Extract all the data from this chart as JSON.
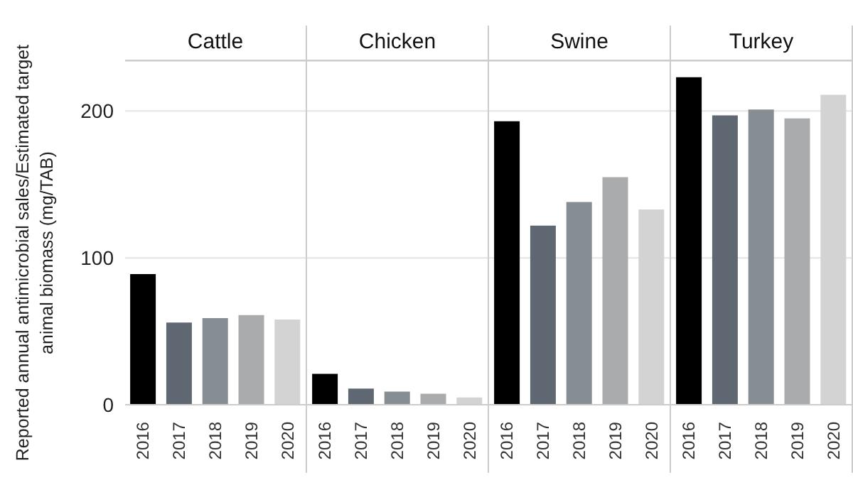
{
  "chart_data": [
    {
      "type": "bar",
      "title": "Cattle",
      "ylabel": "Reported annual antimicrobial sales/Estimated target animal biomass (mg/TAB)",
      "categories": [
        "2016",
        "2017",
        "2018",
        "2019",
        "2020"
      ],
      "values": [
        89,
        56,
        59,
        61,
        58
      ],
      "colors": [
        "#000000",
        "#5f6872",
        "#868d93",
        "#a9abac",
        "#d3d3d3"
      ],
      "ylim": [
        0,
        234
      ],
      "yticks": [
        0,
        100,
        200
      ],
      "grid": "y"
    },
    {
      "type": "bar",
      "title": "Chicken",
      "categories": [
        "2016",
        "2017",
        "2018",
        "2019",
        "2020"
      ],
      "values": [
        21,
        11,
        9,
        7.5,
        5
      ],
      "colors": [
        "#000000",
        "#5f6872",
        "#868d93",
        "#a9abac",
        "#d3d3d3"
      ],
      "ylim": [
        0,
        234
      ],
      "yticks": [
        0,
        100,
        200
      ],
      "grid": "y",
      "tick_labels": "x"
    },
    {
      "type": "bar",
      "title": "Swine",
      "categories": [
        "2016",
        "2017",
        "2018",
        "2019",
        "2020"
      ],
      "values": [
        193,
        122,
        138,
        155,
        133
      ],
      "colors": [
        "#000000",
        "#5f6872",
        "#868d93",
        "#a9abac",
        "#d3d3d3"
      ],
      "ylim": [
        0,
        234
      ],
      "yticks": [
        0,
        100,
        200
      ],
      "grid": "y",
      "tick_labels": "x"
    },
    {
      "type": "bar",
      "title": "Turkey",
      "categories": [
        "2016",
        "2017",
        "2018",
        "2019",
        "2020"
      ],
      "values": [
        223,
        197,
        201,
        195,
        211
      ],
      "colors": [
        "#000000",
        "#5f6872",
        "#868d93",
        "#a9abac",
        "#d3d3d3"
      ],
      "ylim": [
        0,
        234
      ],
      "yticks": [
        0,
        100,
        200
      ],
      "grid": "y",
      "tick_labels": "x"
    }
  ]
}
